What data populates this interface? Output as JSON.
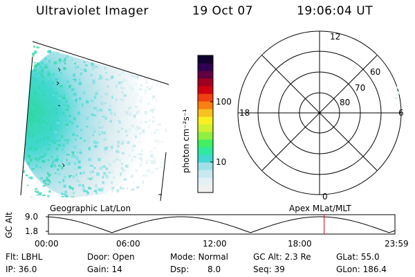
{
  "header": {
    "instrument": "Ultraviolet Imager",
    "date": "19 Oct 07",
    "time": "19:06:04 UT"
  },
  "colorbar": {
    "unit_label": "photon cm⁻²s⁻¹",
    "ticks": [
      "100",
      "10"
    ],
    "colors": [
      "#f0f0f0",
      "#e4f0f4",
      "#c8e8f0",
      "#a0e0e8",
      "#40d8d0",
      "#30e8a0",
      "#40f060",
      "#90f040",
      "#d0f030",
      "#f8f020",
      "#f8c020",
      "#f88010",
      "#f04010",
      "#d00010",
      "#a00020",
      "#600040",
      "#300050",
      "#100030"
    ]
  },
  "polar_plot": {
    "mlt_labels": [
      "12",
      "18",
      "6",
      "0"
    ],
    "lat_labels": [
      "60",
      "70",
      "80"
    ]
  },
  "altitude_panel": {
    "left_title": "Geographic Lat/Lon",
    "right_title": "Apex MLat/MLT",
    "ylabel": "GC Alt",
    "yticks": [
      "9.0",
      "1.8"
    ],
    "xticks": [
      "00:00",
      "06:00",
      "12:00",
      "18:00",
      "23:59"
    ],
    "current_time_hours": 19.1,
    "line_color": "#000000",
    "marker_color": "#d00000"
  },
  "status": {
    "flt": "Flt: LBHL",
    "door": "Door: Open",
    "mode": "Mode: Normal",
    "gcalt": "GC Alt: 2.3 Re",
    "glat": "GLat:  55.0",
    "ip": "IP: 36.0",
    "gain": "Gain: 14",
    "dsp_label": "Dsp:",
    "dsp_value": "8.0",
    "seq": "Seq: 39",
    "glon": "GLon: 186.4"
  }
}
